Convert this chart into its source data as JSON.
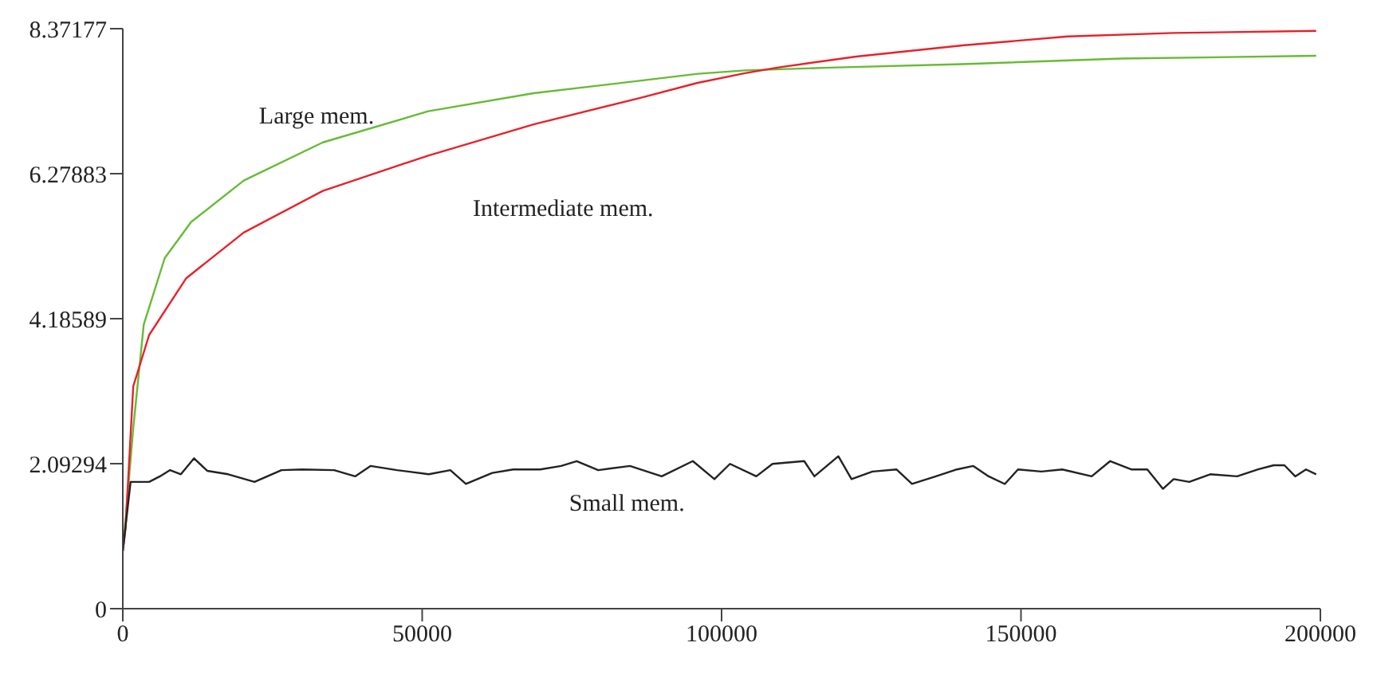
{
  "chart_data": {
    "type": "line",
    "marker": "none",
    "line_style": "solid",
    "xlim": [
      0,
      200000
    ],
    "xticks": [
      0,
      50000,
      100000,
      150000,
      200000
    ],
    "ylim": [
      0,
      8.37177
    ],
    "yticks": [
      0,
      2.09294,
      4.18589,
      6.27883,
      8.37177
    ],
    "series": [
      {
        "name": "Large mem.",
        "color": "#66bb33",
        "x": [
          0,
          1750,
          3500,
          7000,
          11400,
          20200,
          33400,
          51000,
          68600,
          86300,
          96000,
          103900,
          118200,
          140200,
          166700,
          199300
        ],
        "values": [
          0.83,
          2.61,
          4.1,
          5.06,
          5.58,
          6.18,
          6.73,
          7.18,
          7.44,
          7.62,
          7.72,
          7.77,
          7.81,
          7.86,
          7.94,
          7.98
        ]
      },
      {
        "name": "Intermediate mem.",
        "color": "#e8212a",
        "x": [
          0,
          440,
          1750,
          4400,
          10600,
          20200,
          33400,
          51000,
          68600,
          86300,
          96000,
          103900,
          109300,
          122500,
          140200,
          157800,
          175500,
          199300
        ],
        "values": [
          0.83,
          1.14,
          3.21,
          3.95,
          4.77,
          5.43,
          6.03,
          6.54,
          6.99,
          7.37,
          7.59,
          7.73,
          7.81,
          7.97,
          8.13,
          8.26,
          8.31,
          8.34
        ]
      },
      {
        "name": "Small mem.",
        "color": "#222222",
        "x": [
          0,
          1300,
          4400,
          6200,
          7900,
          9700,
          11900,
          14100,
          17600,
          22000,
          26500,
          30000,
          35300,
          38800,
          41400,
          45800,
          51100,
          54700,
          57300,
          61700,
          65200,
          69700,
          73200,
          75800,
          79400,
          84700,
          90000,
          95200,
          98800,
          101400,
          105800,
          108500,
          113800,
          115500,
          119500,
          121700,
          125200,
          129200,
          131800,
          135800,
          139300,
          142000,
          144600,
          147300,
          149500,
          153400,
          156900,
          161800,
          164900,
          168400,
          171100,
          173700,
          175500,
          178100,
          181600,
          186100,
          189600,
          192200,
          194000,
          195800,
          197600,
          199300
        ],
        "values": [
          0.83,
          1.83,
          1.83,
          1.91,
          2.0,
          1.94,
          2.17,
          1.99,
          1.94,
          1.83,
          2.0,
          2.01,
          2.0,
          1.91,
          2.06,
          2.0,
          1.94,
          2.0,
          1.8,
          1.96,
          2.01,
          2.01,
          2.06,
          2.13,
          2.0,
          2.06,
          1.91,
          2.13,
          1.87,
          2.09,
          1.91,
          2.09,
          2.13,
          1.91,
          2.2,
          1.87,
          1.98,
          2.01,
          1.8,
          1.91,
          2.01,
          2.06,
          1.91,
          1.8,
          2.01,
          1.98,
          2.01,
          1.91,
          2.13,
          2.01,
          2.01,
          1.73,
          1.87,
          1.83,
          1.94,
          1.91,
          2.01,
          2.07,
          2.07,
          1.91,
          2.01,
          1.94
        ]
      }
    ]
  }
}
